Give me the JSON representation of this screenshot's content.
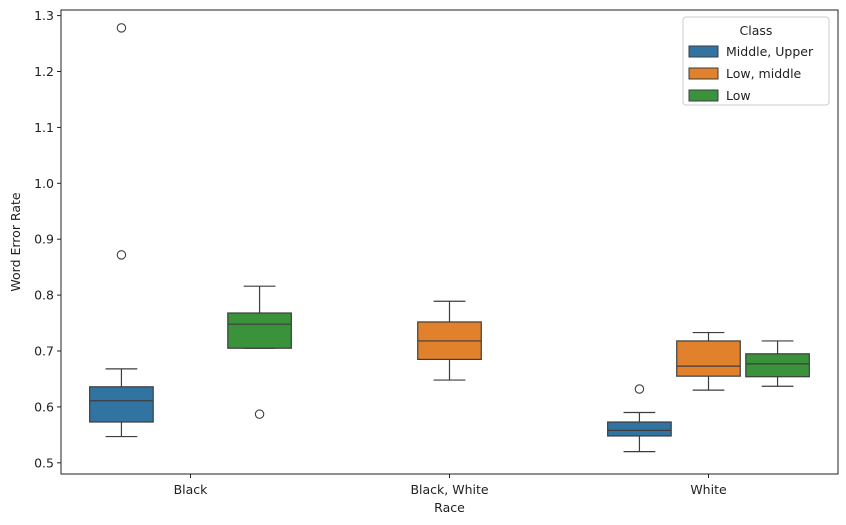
{
  "chart_data": {
    "type": "box",
    "title": "",
    "xlabel": "Race",
    "ylabel": "Word Error Rate",
    "categories": [
      "Black",
      "Black, White",
      "White"
    ],
    "ylim": [
      0.48,
      1.31
    ],
    "yticks": [
      0.5,
      0.6,
      0.7,
      0.8,
      0.9,
      1.0,
      1.1,
      1.2,
      1.3
    ],
    "ytick_labels": [
      "0.5",
      "0.6",
      "0.7",
      "0.8",
      "0.9",
      "1.0",
      "1.1",
      "1.2",
      "1.3"
    ],
    "grid": false,
    "legend": {
      "title": "Class",
      "placement": "top-right"
    },
    "series": [
      {
        "name": "Middle, Upper",
        "color": "#3274a1",
        "boxes": [
          {
            "category": "Black",
            "whisker_low": 0.547,
            "q1": 0.573,
            "median": 0.611,
            "q3": 0.636,
            "whisker_high": 0.668,
            "outliers": [
              0.872,
              1.278
            ]
          },
          null,
          {
            "category": "White",
            "whisker_low": 0.52,
            "q1": 0.548,
            "median": 0.558,
            "q3": 0.573,
            "whisker_high": 0.59,
            "outliers": [
              0.632
            ]
          }
        ]
      },
      {
        "name": "Low, middle",
        "color": "#e1812c",
        "boxes": [
          null,
          {
            "category": "Black, White",
            "whisker_low": 0.648,
            "q1": 0.685,
            "median": 0.718,
            "q3": 0.752,
            "whisker_high": 0.789,
            "outliers": []
          },
          {
            "category": "White",
            "whisker_low": 0.63,
            "q1": 0.655,
            "median": 0.673,
            "q3": 0.718,
            "whisker_high": 0.733,
            "outliers": []
          }
        ]
      },
      {
        "name": "Low",
        "color": "#3a923a",
        "boxes": [
          {
            "category": "Black",
            "whisker_low": 0.705,
            "q1": 0.705,
            "median": 0.748,
            "q3": 0.768,
            "whisker_high": 0.816,
            "outliers": [
              0.587
            ]
          },
          null,
          {
            "category": "White",
            "whisker_low": 0.637,
            "q1": 0.654,
            "median": 0.677,
            "q3": 0.695,
            "whisker_high": 0.718,
            "outliers": []
          }
        ]
      }
    ]
  }
}
